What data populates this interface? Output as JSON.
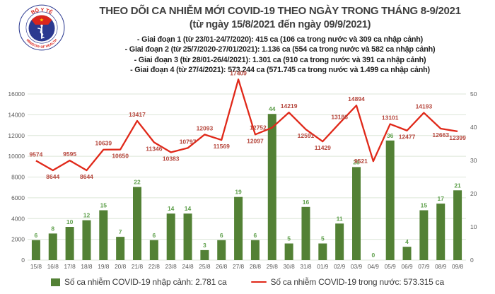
{
  "logo": {
    "arc_top_text": "BỘ Y TẾ",
    "arc_bottom_text": "MINISTRY OF HEALTH"
  },
  "header": {
    "title": "THEO DÕI CA NHIỄM MỚI COVID-19 THEO NGÀY TRONG THÁNG 8-9/2021",
    "subtitle": "(từ ngày 15/8/2021 đến ngày 09/9/2021)",
    "bullets": [
      "- Giai đoạn 1 (từ 23/01-24/7/2020): 415 ca (106 ca trong nước và 309 ca nhập cảnh)",
      "- Giai đoạn 2 (từ 25/7/2020-27/01/2021): 1.136 ca (554 ca trong nước và 582 ca nhập cảnh)",
      "- Giai đoạn 3 (từ 28/01-26/4/2021): 1.301 ca (910 ca trong nước và 391 ca nhập cảnh)",
      "- Giai đoạn 4 (từ 27/4/2021): 573.244 ca (571.745 ca trong nước và 1.499 ca nhập cảnh)"
    ]
  },
  "chart_data": {
    "type": "bar+line combo",
    "categories": [
      "15/8",
      "16/8",
      "17/8",
      "18/8",
      "19/8",
      "20/8",
      "21/8",
      "22/8",
      "23/8",
      "24/8",
      "25/8",
      "26/8",
      "27/8",
      "28/8",
      "29/8",
      "30/8",
      "31/8",
      "01/9",
      "02/9",
      "03/9",
      "04/9",
      "05/9",
      "06/9",
      "07/9",
      "08/9",
      "09/8"
    ],
    "series": [
      {
        "name": "Số ca nhiễm COVID-19 nhập cảnh",
        "type": "bar",
        "axis": "right",
        "values": [
          6,
          8,
          10,
          12,
          15,
          7,
          22,
          6,
          14,
          14,
          3,
          6,
          19,
          6,
          44,
          5,
          16,
          5,
          11,
          28,
          0,
          36,
          4,
          15,
          17,
          21
        ]
      },
      {
        "name": "Số ca nhiễm COVID-19 trong nước",
        "type": "line",
        "axis": "left",
        "values": [
          9574,
          8644,
          9595,
          8644,
          10639,
          10650,
          13417,
          11346,
          10383,
          10797,
          12093,
          11569,
          17409,
          12097,
          12752,
          14219,
          12591,
          11429,
          13186,
          14894,
          9521,
          13101,
          12477,
          14193,
          12663,
          12399
        ],
        "label_pos": [
          "above",
          "below",
          "above",
          "below",
          "above",
          "below",
          "above",
          "below",
          "below",
          "above",
          "above",
          "below",
          "above",
          "below",
          "left",
          "above",
          "below",
          "below",
          "above",
          "above",
          "left",
          "above",
          "below",
          "above",
          "below",
          "below"
        ]
      }
    ],
    "left_axis": {
      "min": 0,
      "max": 16000,
      "step": 2000,
      "ticks": [
        "0",
        "2000",
        "4000",
        "6000",
        "8000",
        "10000",
        "12000",
        "14000",
        "16000"
      ]
    },
    "right_axis": {
      "min": 0,
      "max": 50,
      "step": 10,
      "ticks": [
        "0",
        "10",
        "20",
        "30",
        "40",
        "50"
      ]
    },
    "grid": true,
    "legend_position": "bottom"
  },
  "legend": {
    "bar_label": "Số ca nhiễm COVID-19 nhập cảnh: 2.781 ca",
    "line_label": "Số ca nhiễm COVID-19 trong nước: 573.315 ca"
  },
  "colors": {
    "bar": "#538135",
    "bar_label": "#5fa04c",
    "line": "#e02819",
    "line_label": "#b5463c",
    "axis_text": "#595959",
    "gridline": "#dce6d8",
    "title_text": "#3f3f3f",
    "logo_navy": "#2b3990",
    "logo_red": "#da251d",
    "logo_star": "#ffd400"
  }
}
